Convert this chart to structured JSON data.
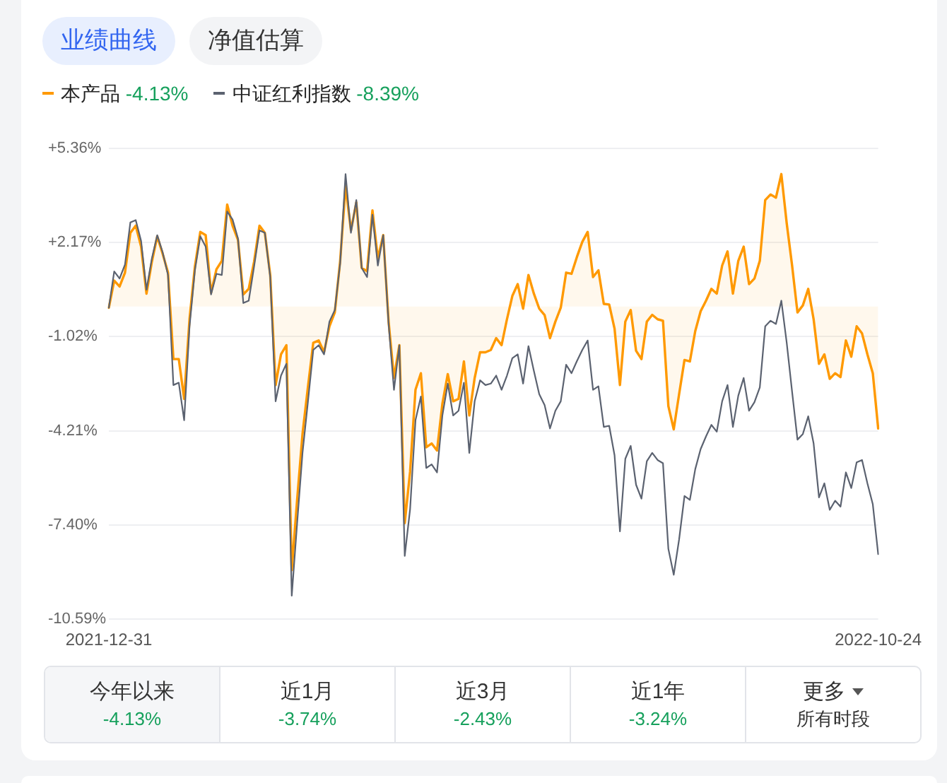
{
  "chart_data": {
    "type": "line",
    "categories": [
      "2021-12-31",
      null,
      null,
      null,
      null,
      null,
      null,
      null,
      null,
      null,
      null,
      null,
      null,
      null,
      null,
      null,
      null,
      null,
      null,
      null,
      null,
      null,
      null,
      null,
      null,
      null,
      null,
      null,
      null,
      null,
      null,
      null,
      null,
      null,
      null,
      null,
      null,
      null,
      null,
      null,
      null,
      null,
      null,
      null,
      null,
      null,
      null,
      null,
      null,
      null,
      null,
      null,
      null,
      null,
      null,
      null,
      null,
      null,
      null,
      null,
      null,
      null,
      null,
      null,
      null,
      null,
      null,
      null,
      null,
      null,
      null,
      null,
      null,
      null,
      null,
      null,
      null,
      null,
      null,
      null,
      null,
      null,
      null,
      null,
      null,
      null,
      null,
      null,
      null,
      null,
      null,
      null,
      null,
      null,
      null,
      null,
      null,
      null,
      null,
      null,
      null,
      null,
      null,
      null,
      null,
      null,
      null,
      null,
      null,
      null,
      null,
      null,
      null,
      null,
      null,
      null,
      null,
      null,
      null,
      null,
      null,
      null,
      null,
      null,
      null,
      null,
      null,
      null,
      null,
      null,
      null,
      null,
      null,
      null,
      null,
      null,
      null,
      null,
      null,
      null,
      null,
      null,
      null,
      "2022-10-24"
    ],
    "series": [
      {
        "name": "本产品 -4.13%",
        "color": "#ff9900",
        "type": "area",
        "values": [
          -0.04,
          0.88,
          0.68,
          1.15,
          2.5,
          2.74,
          2.03,
          0.44,
          1.52,
          2.38,
          1.79,
          1.15,
          -1.78,
          -1.78,
          -3.13,
          -0.43,
          1.36,
          2.53,
          2.42,
          0.47,
          1.26,
          1.55,
          3.46,
          2.74,
          2.26,
          0.41,
          0.6,
          1.52,
          2.74,
          2.5,
          1.07,
          -2.66,
          -1.62,
          -1.31,
          -8.93,
          -6.55,
          -4.32,
          -2.74,
          -1.23,
          -1.15,
          -1.55,
          -0.67,
          -0.2,
          1.55,
          4.09,
          2.58,
          3.53,
          1.31,
          1.2,
          3.26,
          1.63,
          2.42,
          -0.51,
          -2.42,
          -1.31,
          -7.34,
          -5.59,
          -2.82,
          -2.26,
          -4.77,
          -4.64,
          -4.88,
          -3.29,
          -2.29,
          -3.21,
          -3.13,
          -1.86,
          -3.69,
          -2.42,
          -1.55,
          -1.55,
          -1.47,
          -1.07,
          -1.31,
          -0.43,
          0.36,
          0.76,
          -0.07,
          1.07,
          0.44,
          -0.07,
          -0.29,
          -1.07,
          -0.51,
          -0.04,
          1.15,
          1.11,
          1.68,
          2.19,
          2.53,
          1.0,
          1.23,
          0.09,
          0.07,
          -0.75,
          -2.66,
          -0.51,
          -0.12,
          -1.5,
          -1.78,
          -0.51,
          -0.28,
          -0.43,
          -0.48,
          -3.37,
          -4.16,
          -2.97,
          -1.81,
          -1.86,
          -0.83,
          -0.16,
          0.2,
          0.6,
          0.44,
          1.39,
          1.87,
          0.44,
          1.55,
          2.03,
          0.76,
          0.95,
          1.55,
          3.61,
          3.8,
          3.69,
          4.49,
          2.82,
          1.39,
          -0.2,
          0.04,
          0.6,
          -0.43,
          -1.94,
          -1.62,
          -2.45,
          -2.26,
          -2.39,
          -1.15,
          -1.7,
          -0.67,
          -0.91,
          -1.62,
          -2.26,
          -4.13
        ]
      },
      {
        "name": "中证红利指数 -8.39%",
        "color": "#5b6270",
        "values": [
          -0.04,
          1.19,
          0.95,
          1.42,
          2.85,
          2.93,
          2.22,
          0.57,
          1.63,
          2.42,
          1.84,
          1.07,
          -2.66,
          -2.58,
          -3.85,
          -0.67,
          1.23,
          2.38,
          2.03,
          0.41,
          1.11,
          1.07,
          3.22,
          2.95,
          2.31,
          0.12,
          0.2,
          1.36,
          2.58,
          2.5,
          1.0,
          -3.21,
          -2.34,
          -1.94,
          -9.8,
          -7.34,
          -4.96,
          -3.24,
          -1.47,
          -1.31,
          -1.62,
          -0.51,
          -0.12,
          1.47,
          4.49,
          2.5,
          3.61,
          1.31,
          1.0,
          3.11,
          1.39,
          2.42,
          -0.59,
          -2.82,
          -1.31,
          -8.45,
          -6.86,
          -3.85,
          -3.05,
          -5.47,
          -5.35,
          -5.62,
          -3.69,
          -2.61,
          -3.69,
          -3.53,
          -2.58,
          -4.96,
          -3.21,
          -2.5,
          -2.66,
          -2.61,
          -2.34,
          -2.82,
          -2.34,
          -1.75,
          -1.62,
          -2.61,
          -1.34,
          -2.18,
          -2.97,
          -3.34,
          -4.13,
          -3.53,
          -3.21,
          -1.97,
          -2.26,
          -1.85,
          -1.47,
          -1.15,
          -2.82,
          -2.7,
          -4.08,
          -4.04,
          -5.04,
          -7.62,
          -5.16,
          -4.72,
          -6.04,
          -6.51,
          -5.24,
          -4.96,
          -5.2,
          -5.31,
          -8.21,
          -9.09,
          -7.89,
          -6.42,
          -6.55,
          -5.51,
          -4.83,
          -4.4,
          -4.01,
          -4.24,
          -3.21,
          -2.66,
          -4.08,
          -3.02,
          -2.42,
          -3.53,
          -3.24,
          -2.74,
          -0.67,
          -0.48,
          -0.59,
          0.2,
          -1.23,
          -2.89,
          -4.51,
          -4.32,
          -3.72,
          -4.64,
          -6.47,
          -5.99,
          -6.89,
          -6.58,
          -6.78,
          -5.62,
          -6.15,
          -5.28,
          -5.2,
          -5.99,
          -6.7,
          -8.39
        ]
      }
    ],
    "ylim": [
      -10.59,
      5.36
    ],
    "yticks": [
      {
        "value": 5.36,
        "label": "+5.36%"
      },
      {
        "value": 2.17,
        "label": "+2.17%"
      },
      {
        "value": -1.02,
        "label": "-1.02%"
      },
      {
        "value": -4.21,
        "label": "-4.21%"
      },
      {
        "value": -7.4,
        "label": "-7.40%"
      },
      {
        "value": -10.59,
        "label": "-10.59%"
      }
    ],
    "grid": "y",
    "legend": "top left",
    "marker": "none",
    "annotations": [
      "业绩曲线",
      "净值估算",
      "今年以来",
      "-4.13%",
      "近1月",
      "-3.74%",
      "近3月",
      "-2.43%",
      "近1年",
      "-3.24%",
      "更多",
      "所有时段"
    ]
  }
}
